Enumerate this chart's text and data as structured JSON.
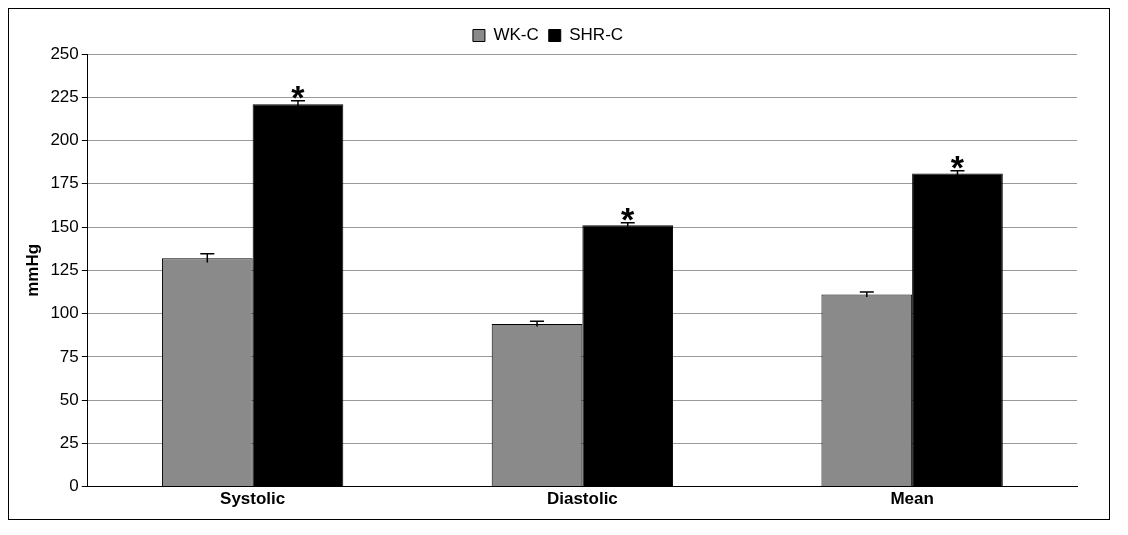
{
  "chart_data": {
    "type": "bar",
    "ylabel": "mmHg",
    "categories": [
      "Systolic",
      "Diastolic",
      "Mean"
    ],
    "series": [
      {
        "name": "WK-C",
        "color": "#8a8a8a",
        "values": [
          132,
          94,
          111
        ],
        "errors": [
          2.5,
          1.5,
          1.5
        ]
      },
      {
        "name": "SHR-C",
        "color": "#000000",
        "values": [
          221,
          151,
          181
        ],
        "errors": [
          2,
          1.5,
          1.5
        ]
      }
    ],
    "ylim": [
      0,
      250
    ],
    "yticks": [
      0,
      25,
      50,
      75,
      100,
      125,
      150,
      175,
      200,
      225,
      250
    ],
    "grid": "y",
    "legend": "top",
    "annotations": [
      {
        "text": "*",
        "x": "Systolic",
        "y": 223
      },
      {
        "text": "*",
        "x": "Diastolic",
        "y": 152.5
      },
      {
        "text": "*",
        "x": "Mean",
        "y": 182.5
      }
    ]
  }
}
